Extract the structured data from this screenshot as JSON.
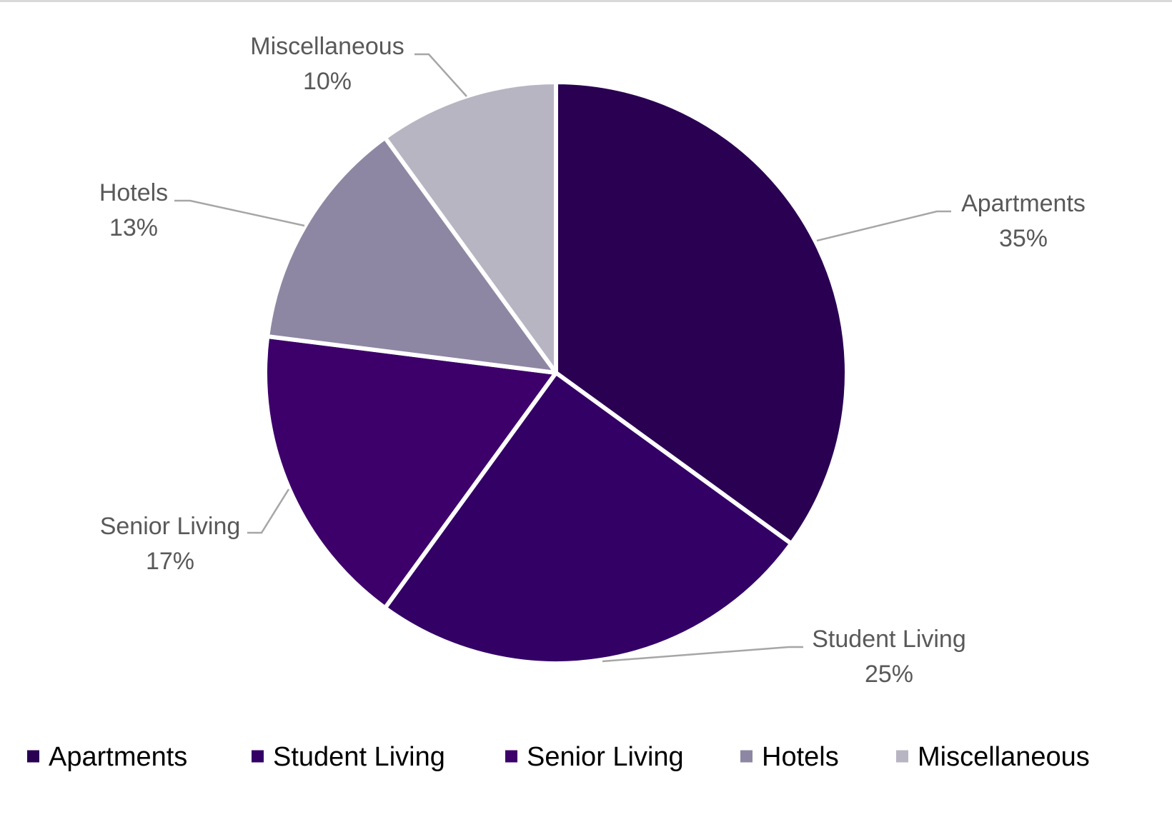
{
  "chart_data": {
    "type": "pie",
    "title": "",
    "categories": [
      "Apartments",
      "Student Living",
      "Senior Living",
      "Hotels",
      "Miscellaneous"
    ],
    "values": [
      35,
      25,
      17,
      13,
      10
    ],
    "percent_labels": [
      "35%",
      "25%",
      "17%",
      "13%",
      "10%"
    ],
    "colors": [
      "#2a0052",
      "#330066",
      "#3d006b",
      "#8e87a3",
      "#b8b5c3"
    ],
    "start_angle_deg": 0,
    "direction": "clockwise",
    "data_labels": "category name and percentage, outside with leader lines",
    "legend": {
      "position": "bottom",
      "entries": [
        "Apartments",
        "Student Living",
        "Senior Living",
        "Hotels",
        "Miscellaneous"
      ]
    }
  }
}
